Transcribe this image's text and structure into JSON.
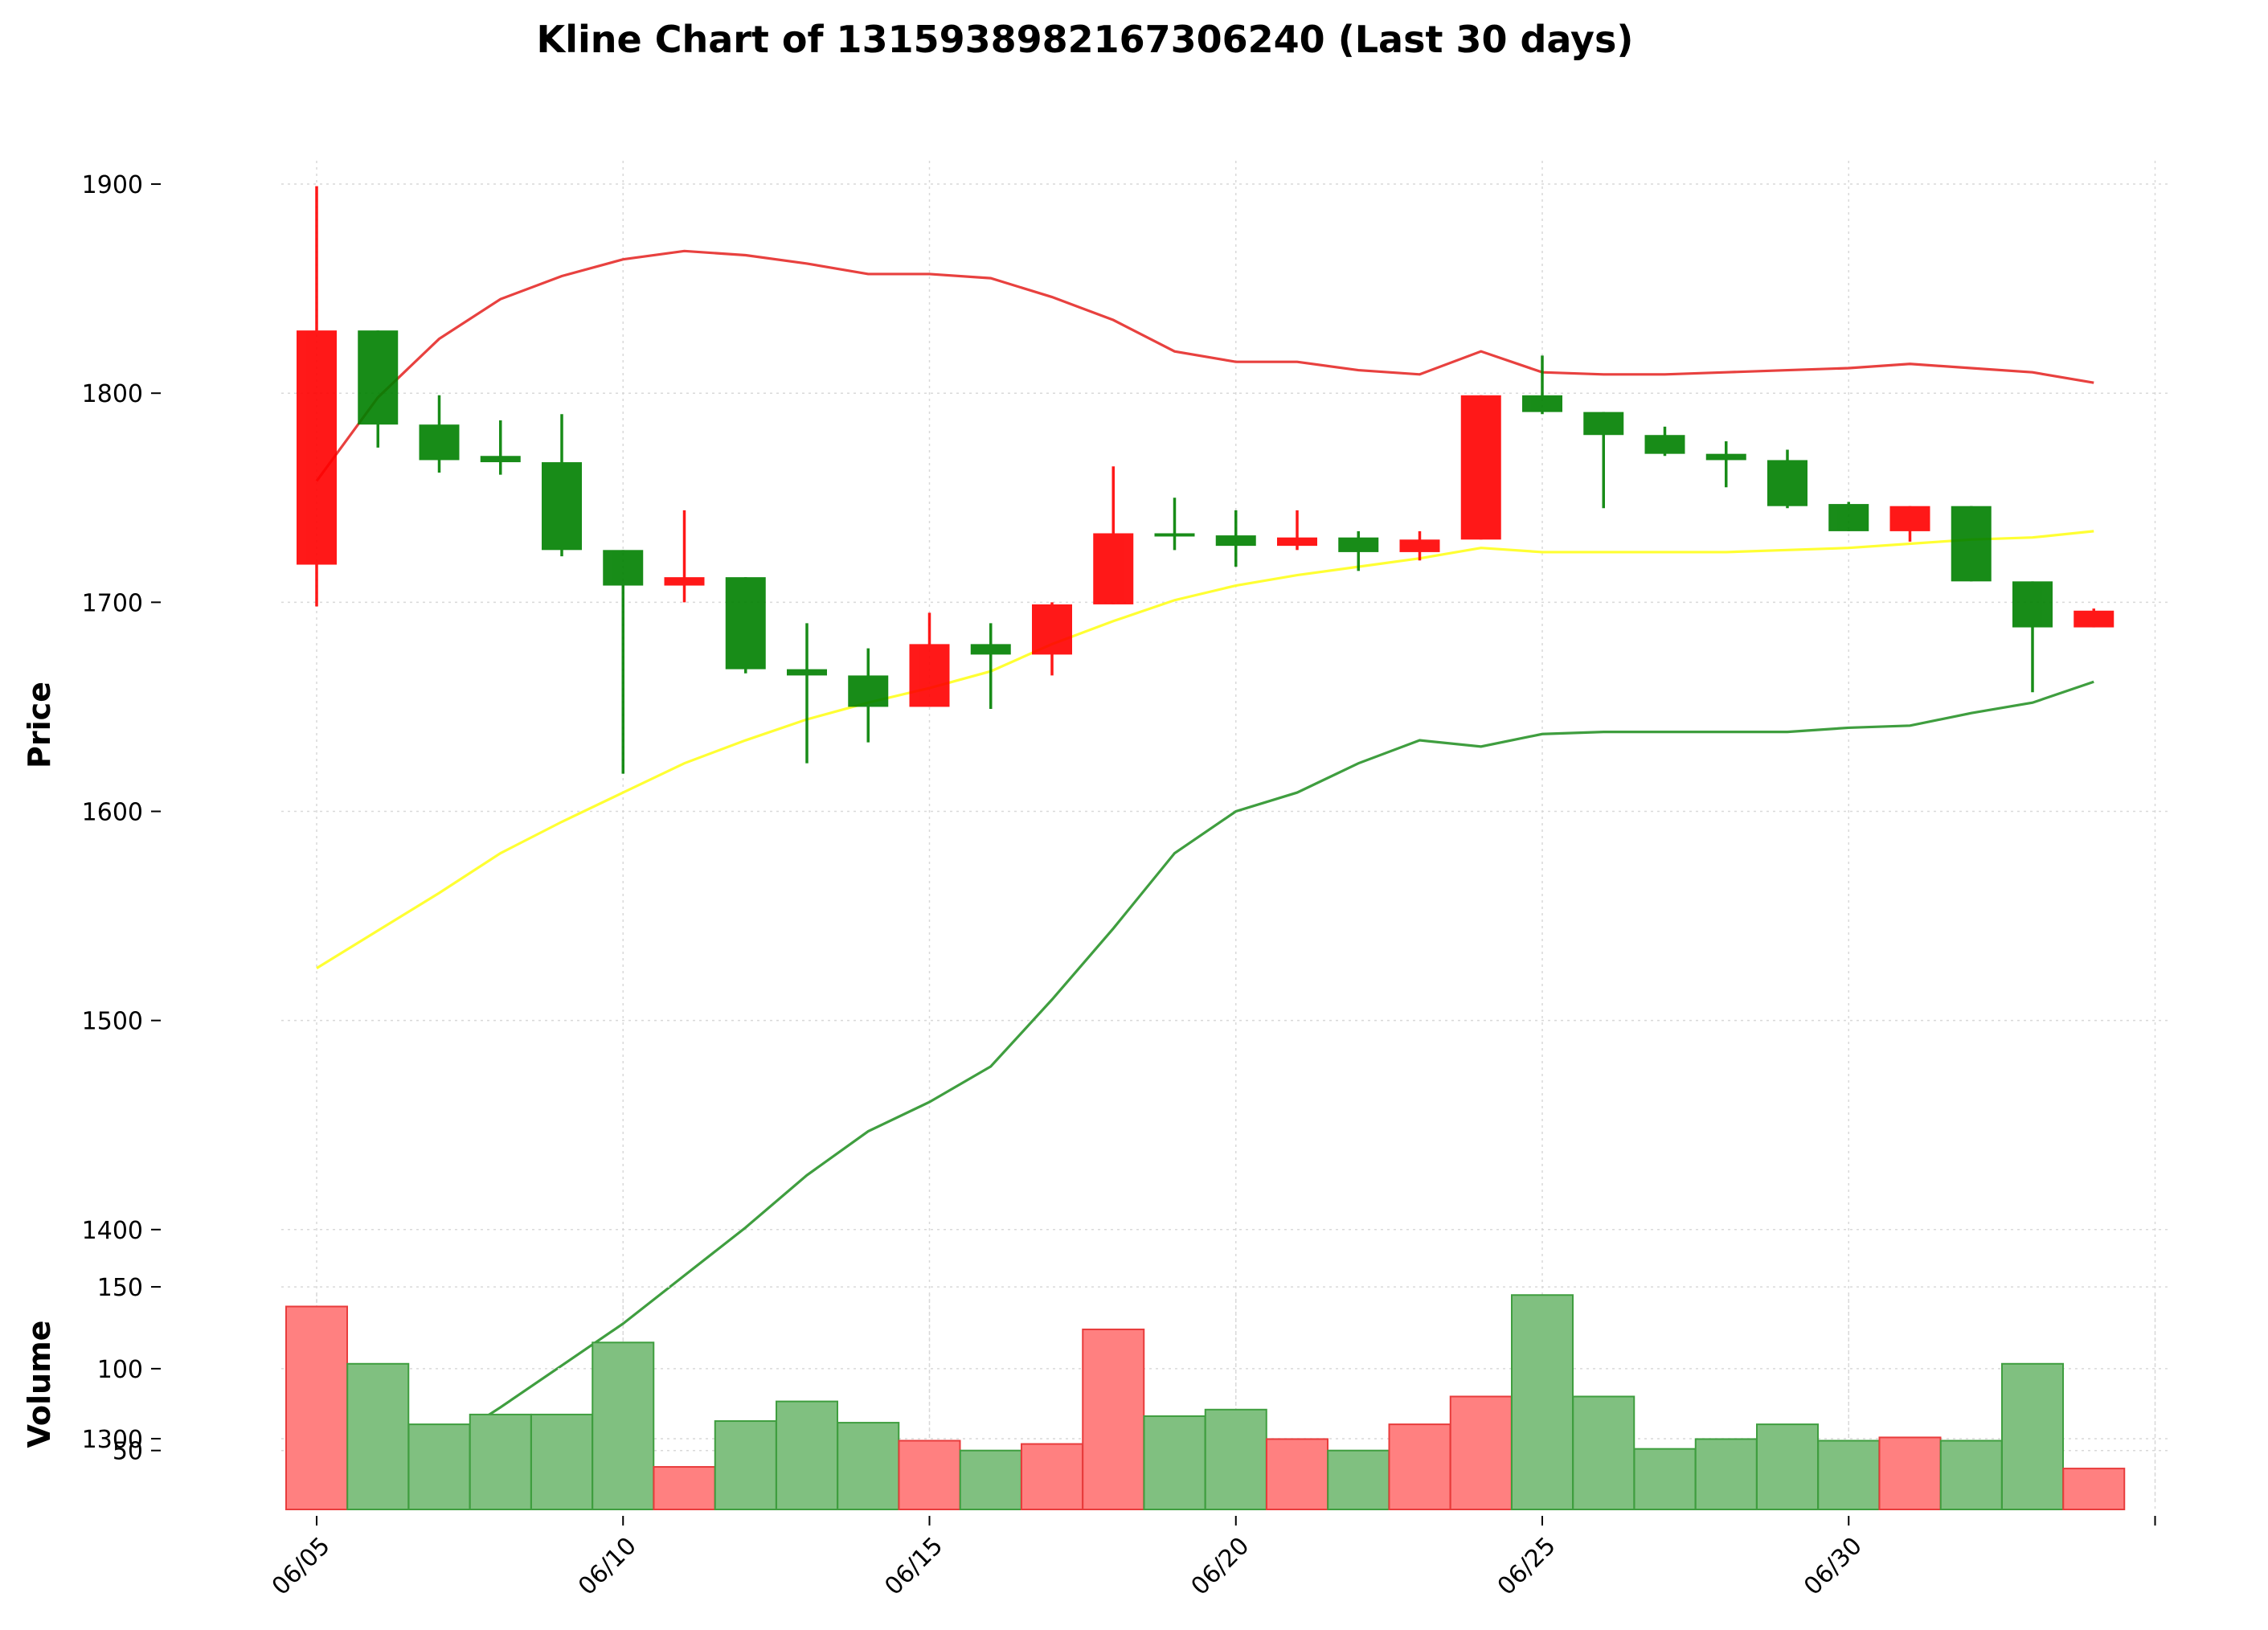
{
  "title": "Kline Chart of 1315938982167306240 (Last 30 days)",
  "chart_data": [
    {
      "type": "candlestick",
      "title": "Kline Chart of 1315938982167306240 (Last 30 days)",
      "ylabel": "Price",
      "ylim": [
        1270,
        1935
      ],
      "yticks": [
        1300,
        1400,
        1500,
        1600,
        1700,
        1800,
        1900
      ],
      "x": [
        "06/05",
        "06/06",
        "06/07",
        "06/08",
        "06/09",
        "06/10",
        "06/11",
        "06/12",
        "06/13",
        "06/14",
        "06/15",
        "06/16",
        "06/17",
        "06/18",
        "06/19",
        "06/20",
        "06/21",
        "06/22",
        "06/23",
        "06/24",
        "06/25",
        "06/26",
        "06/27",
        "06/28",
        "06/29",
        "06/30",
        "07/01",
        "07/02",
        "07/03",
        "07/04"
      ],
      "xticks": [
        "06/05",
        "06/10",
        "06/15",
        "06/20",
        "06/25",
        "06/30"
      ],
      "up_color": "#ff0000",
      "down_color": "#008000",
      "grid": true,
      "candles": [
        {
          "open": 1718,
          "high": 1899,
          "low": 1698,
          "close": 1830
        },
        {
          "open": 1830,
          "high": 1830,
          "low": 1774,
          "close": 1785
        },
        {
          "open": 1785,
          "high": 1799,
          "low": 1762,
          "close": 1768
        },
        {
          "open": 1770,
          "high": 1787,
          "low": 1761,
          "close": 1767
        },
        {
          "open": 1767,
          "high": 1790,
          "low": 1722,
          "close": 1725
        },
        {
          "open": 1725,
          "high": 1725,
          "low": 1618,
          "close": 1708
        },
        {
          "open": 1708,
          "high": 1744,
          "low": 1700,
          "close": 1712
        },
        {
          "open": 1712,
          "high": 1712,
          "low": 1666,
          "close": 1668
        },
        {
          "open": 1668,
          "high": 1690,
          "low": 1623,
          "close": 1665
        },
        {
          "open": 1665,
          "high": 1678,
          "low": 1633,
          "close": 1650
        },
        {
          "open": 1650,
          "high": 1695,
          "low": 1650,
          "close": 1680
        },
        {
          "open": 1680,
          "high": 1690,
          "low": 1649,
          "close": 1675
        },
        {
          "open": 1675,
          "high": 1700,
          "low": 1665,
          "close": 1699
        },
        {
          "open": 1699,
          "high": 1765,
          "low": 1699,
          "close": 1733
        },
        {
          "open": 1733,
          "high": 1750,
          "low": 1725,
          "close": 1732
        },
        {
          "open": 1732,
          "high": 1744,
          "low": 1717,
          "close": 1727
        },
        {
          "open": 1727,
          "high": 1744,
          "low": 1725,
          "close": 1731
        },
        {
          "open": 1731,
          "high": 1734,
          "low": 1715,
          "close": 1724
        },
        {
          "open": 1724,
          "high": 1734,
          "low": 1720,
          "close": 1730
        },
        {
          "open": 1730,
          "high": 1799,
          "low": 1730,
          "close": 1799
        },
        {
          "open": 1799,
          "high": 1818,
          "low": 1790,
          "close": 1791
        },
        {
          "open": 1791,
          "high": 1791,
          "low": 1745,
          "close": 1780
        },
        {
          "open": 1780,
          "high": 1784,
          "low": 1770,
          "close": 1771
        },
        {
          "open": 1771,
          "high": 1777,
          "low": 1755,
          "close": 1768
        },
        {
          "open": 1768,
          "high": 1773,
          "low": 1745,
          "close": 1746
        },
        {
          "open": 1747,
          "high": 1748,
          "low": 1734,
          "close": 1734
        },
        {
          "open": 1734,
          "high": 1746,
          "low": 1729,
          "close": 1746
        },
        {
          "open": 1746,
          "high": 1746,
          "low": 1710,
          "close": 1710
        },
        {
          "open": 1710,
          "high": 1710,
          "low": 1657,
          "close": 1688
        },
        {
          "open": 1688,
          "high": 1697,
          "low": 1688,
          "close": 1696
        }
      ],
      "bands": [
        {
          "name": "upper",
          "color": "#e8413f",
          "values": [
            1758,
            1798,
            1826,
            1845,
            1856,
            1864,
            1868,
            1866,
            1862,
            1857,
            1857,
            1855,
            1846,
            1835,
            1820,
            1815,
            1815,
            1811,
            1809,
            1820,
            1810,
            1809,
            1809,
            1810,
            1811,
            1812,
            1814,
            1812,
            1810,
            1805
          ]
        },
        {
          "name": "middle",
          "color": "#ffff33",
          "values": [
            1525,
            1543,
            1561,
            1580,
            1595,
            1609,
            1623,
            1634,
            1644,
            1652,
            1659,
            1667,
            1680,
            1691,
            1701,
            1708,
            1713,
            1717,
            1721,
            1726,
            1724,
            1724,
            1724,
            1724,
            1725,
            1726,
            1728,
            1730,
            1731,
            1734
          ]
        },
        {
          "name": "lower",
          "color": "#3f9e3f",
          "values": [
            1291,
            1288,
            1296,
            1315,
            1335,
            1355,
            1378,
            1401,
            1426,
            1447,
            1461,
            1478,
            1510,
            1544,
            1580,
            1600,
            1609,
            1623,
            1634,
            1631,
            1637,
            1638,
            1638,
            1638,
            1638,
            1640,
            1641,
            1647,
            1652,
            1662
          ]
        }
      ]
    },
    {
      "type": "bar",
      "ylabel": "Volume",
      "ylim": [
        14,
        152
      ],
      "yticks": [
        50,
        100,
        150
      ],
      "x": [
        "06/05",
        "06/06",
        "06/07",
        "06/08",
        "06/09",
        "06/10",
        "06/11",
        "06/12",
        "06/13",
        "06/14",
        "06/15",
        "06/16",
        "06/17",
        "06/18",
        "06/19",
        "06/20",
        "06/21",
        "06/22",
        "06/23",
        "06/24",
        "06/25",
        "06/26",
        "06/27",
        "06/28",
        "06/29",
        "06/30",
        "07/01",
        "07/02",
        "07/03",
        "07/04"
      ],
      "values": [
        138,
        103,
        66,
        72,
        72,
        116,
        40,
        68,
        80,
        67,
        56,
        50,
        54,
        124,
        71,
        75,
        57,
        50,
        66,
        83,
        145,
        83,
        51,
        57,
        66,
        56,
        58,
        56,
        103,
        39
      ],
      "colors": [
        "up",
        "down",
        "down",
        "down",
        "down",
        "down",
        "up",
        "down",
        "down",
        "down",
        "up",
        "down",
        "up",
        "up",
        "down",
        "down",
        "up",
        "down",
        "up",
        "up",
        "down",
        "down",
        "down",
        "down",
        "down",
        "down",
        "up",
        "down",
        "down",
        "up"
      ],
      "up_color": "#ff8080",
      "down_color": "#80c080",
      "up_edge": "#e83c3c",
      "down_edge": "#3f9e3f"
    }
  ]
}
